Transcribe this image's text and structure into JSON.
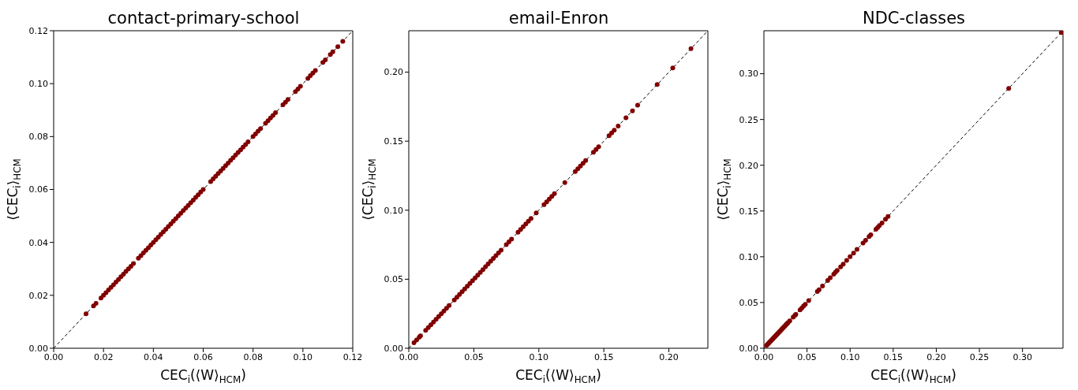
{
  "chart_data": [
    {
      "type": "scatter",
      "title": "contact-primary-school",
      "xlabel": "CEC$_{i}$(⟨W⟩$_{HCM}$)",
      "ylabel": "⟨CEC$_{i}$⟩$_{HCM}$",
      "marker": "circle",
      "xlim": [
        0,
        0.12
      ],
      "ylim": [
        0,
        0.12
      ],
      "xticks": [
        {
          "value": 0,
          "label": "0.00"
        },
        {
          "value": 0.02,
          "label": "0.02"
        },
        {
          "value": 0.04,
          "label": "0.04"
        },
        {
          "value": 0.06,
          "label": "0.06"
        },
        {
          "value": 0.08,
          "label": "0.08"
        },
        {
          "value": 0.1,
          "label": "0.10"
        },
        {
          "value": 0.12,
          "label": "0.12"
        }
      ],
      "yticks": [
        {
          "value": 0,
          "label": "0.00"
        },
        {
          "value": 0.02,
          "label": "0.02"
        },
        {
          "value": 0.04,
          "label": "0.04"
        },
        {
          "value": 0.06,
          "label": "0.06"
        },
        {
          "value": 0.08,
          "label": "0.08"
        },
        {
          "value": 0.1,
          "label": "0.10"
        },
        {
          "value": 0.12,
          "label": "0.12"
        }
      ],
      "series": [
        {
          "type": "line",
          "color": "#000000",
          "line_style": "dashed",
          "marker": "none",
          "x": [
            0,
            0.12
          ],
          "values": [
            0,
            0.12
          ]
        },
        {
          "color": "#800000",
          "x": [
            0.013,
            0.016,
            0.017,
            0.019,
            0.02,
            0.021,
            0.022,
            0.023,
            0.024,
            0.025,
            0.026,
            0.027,
            0.028,
            0.029,
            0.03,
            0.031,
            0.032,
            0.034,
            0.035,
            0.036,
            0.037,
            0.038,
            0.039,
            0.04,
            0.041,
            0.042,
            0.043,
            0.044,
            0.045,
            0.046,
            0.047,
            0.048,
            0.049,
            0.05,
            0.051,
            0.052,
            0.053,
            0.054,
            0.055,
            0.056,
            0.057,
            0.058,
            0.059,
            0.06,
            0.063,
            0.064,
            0.065,
            0.066,
            0.067,
            0.068,
            0.069,
            0.07,
            0.071,
            0.072,
            0.073,
            0.074,
            0.075,
            0.076,
            0.077,
            0.078,
            0.08,
            0.081,
            0.082,
            0.083,
            0.085,
            0.086,
            0.087,
            0.088,
            0.089,
            0.092,
            0.093,
            0.094,
            0.097,
            0.098,
            0.099,
            0.102,
            0.103,
            0.104,
            0.105,
            0.108,
            0.109,
            0.111,
            0.112,
            0.114,
            0.116
          ],
          "values": [
            0.013,
            0.016,
            0.017,
            0.019,
            0.02,
            0.021,
            0.022,
            0.023,
            0.024,
            0.025,
            0.026,
            0.027,
            0.028,
            0.029,
            0.03,
            0.031,
            0.032,
            0.034,
            0.035,
            0.036,
            0.037,
            0.038,
            0.039,
            0.04,
            0.041,
            0.042,
            0.043,
            0.044,
            0.045,
            0.046,
            0.047,
            0.048,
            0.049,
            0.05,
            0.051,
            0.052,
            0.053,
            0.054,
            0.055,
            0.056,
            0.057,
            0.058,
            0.059,
            0.06,
            0.063,
            0.064,
            0.065,
            0.066,
            0.067,
            0.068,
            0.069,
            0.07,
            0.071,
            0.072,
            0.073,
            0.074,
            0.075,
            0.076,
            0.077,
            0.078,
            0.08,
            0.081,
            0.082,
            0.083,
            0.085,
            0.086,
            0.087,
            0.088,
            0.089,
            0.092,
            0.093,
            0.094,
            0.097,
            0.098,
            0.099,
            0.102,
            0.103,
            0.104,
            0.105,
            0.108,
            0.109,
            0.111,
            0.112,
            0.114,
            0.116
          ]
        }
      ]
    },
    {
      "type": "scatter",
      "title": "email-Enron",
      "xlabel": "CEC$_{i}$(⟨W⟩$_{HCM}$)",
      "ylabel": "⟨CEC$_{i}$⟩$_{HCM}$",
      "marker": "circle",
      "xlim": [
        0,
        0.23
      ],
      "ylim": [
        0,
        0.23
      ],
      "xticks": [
        {
          "value": 0,
          "label": "0.00"
        },
        {
          "value": 0.05,
          "label": "0.05"
        },
        {
          "value": 0.1,
          "label": "0.10"
        },
        {
          "value": 0.15,
          "label": "0.15"
        },
        {
          "value": 0.2,
          "label": "0.20"
        }
      ],
      "yticks": [
        {
          "value": 0,
          "label": "0.00"
        },
        {
          "value": 0.05,
          "label": "0.05"
        },
        {
          "value": 0.1,
          "label": "0.10"
        },
        {
          "value": 0.15,
          "label": "0.15"
        },
        {
          "value": 0.2,
          "label": "0.20"
        }
      ],
      "series": [
        {
          "type": "line",
          "color": "#000000",
          "line_style": "dashed",
          "marker": "none",
          "x": [
            0,
            0.23
          ],
          "values": [
            0,
            0.23
          ]
        },
        {
          "color": "#800000",
          "x": [
            0.004,
            0.006,
            0.008,
            0.009,
            0.013,
            0.015,
            0.017,
            0.019,
            0.021,
            0.023,
            0.025,
            0.027,
            0.029,
            0.031,
            0.035,
            0.037,
            0.039,
            0.041,
            0.043,
            0.045,
            0.047,
            0.049,
            0.051,
            0.053,
            0.055,
            0.057,
            0.059,
            0.061,
            0.063,
            0.065,
            0.067,
            0.069,
            0.071,
            0.075,
            0.077,
            0.079,
            0.084,
            0.086,
            0.088,
            0.09,
            0.092,
            0.094,
            0.098,
            0.104,
            0.106,
            0.108,
            0.11,
            0.112,
            0.12,
            0.128,
            0.13,
            0.132,
            0.134,
            0.136,
            0.142,
            0.144,
            0.146,
            0.154,
            0.156,
            0.158,
            0.161,
            0.167,
            0.172,
            0.176,
            0.191,
            0.203,
            0.217
          ],
          "values": [
            0.004,
            0.006,
            0.008,
            0.009,
            0.013,
            0.015,
            0.017,
            0.019,
            0.021,
            0.023,
            0.025,
            0.027,
            0.029,
            0.031,
            0.035,
            0.037,
            0.039,
            0.041,
            0.043,
            0.045,
            0.047,
            0.049,
            0.051,
            0.053,
            0.055,
            0.057,
            0.059,
            0.061,
            0.063,
            0.065,
            0.067,
            0.069,
            0.071,
            0.075,
            0.077,
            0.079,
            0.084,
            0.086,
            0.088,
            0.09,
            0.092,
            0.094,
            0.098,
            0.104,
            0.106,
            0.108,
            0.11,
            0.112,
            0.12,
            0.128,
            0.13,
            0.132,
            0.134,
            0.136,
            0.142,
            0.144,
            0.146,
            0.154,
            0.156,
            0.158,
            0.161,
            0.167,
            0.172,
            0.176,
            0.191,
            0.203,
            0.217
          ]
        }
      ]
    },
    {
      "type": "scatter",
      "title": "NDC-classes",
      "xlabel": "CEC$_{i}$(⟨W⟩$_{HCM}$)",
      "ylabel": "⟨CEC$_{i}$⟩$_{HCM}$",
      "marker": "circle",
      "xlim": [
        0,
        0.347
      ],
      "ylim": [
        0,
        0.347
      ],
      "xticks": [
        {
          "value": 0,
          "label": "0.00"
        },
        {
          "value": 0.05,
          "label": "0.05"
        },
        {
          "value": 0.1,
          "label": "0.10"
        },
        {
          "value": 0.15,
          "label": "0.15"
        },
        {
          "value": 0.2,
          "label": "0.20"
        },
        {
          "value": 0.25,
          "label": "0.25"
        },
        {
          "value": 0.3,
          "label": "0.30"
        }
      ],
      "yticks": [
        {
          "value": 0,
          "label": "0.00"
        },
        {
          "value": 0.05,
          "label": "0.05"
        },
        {
          "value": 0.1,
          "label": "0.10"
        },
        {
          "value": 0.15,
          "label": "0.15"
        },
        {
          "value": 0.2,
          "label": "0.20"
        },
        {
          "value": 0.25,
          "label": "0.25"
        },
        {
          "value": 0.3,
          "label": "0.30"
        }
      ],
      "series": [
        {
          "type": "line",
          "color": "#000000",
          "line_style": "dashed",
          "marker": "none",
          "x": [
            0,
            0.347
          ],
          "values": [
            0,
            0.347
          ]
        },
        {
          "color": "#800000",
          "x": [
            0.003,
            0.004,
            0.005,
            0.006,
            0.007,
            0.008,
            0.009,
            0.01,
            0.011,
            0.012,
            0.013,
            0.014,
            0.015,
            0.016,
            0.017,
            0.018,
            0.019,
            0.02,
            0.021,
            0.022,
            0.023,
            0.024,
            0.025,
            0.026,
            0.027,
            0.028,
            0.03,
            0.034,
            0.036,
            0.037,
            0.042,
            0.044,
            0.046,
            0.048,
            0.052,
            0.062,
            0.064,
            0.068,
            0.074,
            0.077,
            0.081,
            0.083,
            0.085,
            0.089,
            0.092,
            0.096,
            0.1,
            0.104,
            0.108,
            0.115,
            0.118,
            0.122,
            0.124,
            0.13,
            0.132,
            0.134,
            0.137,
            0.141,
            0.144,
            0.284,
            0.345
          ],
          "values": [
            0.003,
            0.004,
            0.005,
            0.006,
            0.007,
            0.008,
            0.009,
            0.01,
            0.011,
            0.012,
            0.013,
            0.014,
            0.015,
            0.016,
            0.017,
            0.018,
            0.019,
            0.02,
            0.021,
            0.022,
            0.023,
            0.024,
            0.025,
            0.026,
            0.027,
            0.028,
            0.03,
            0.034,
            0.036,
            0.037,
            0.042,
            0.044,
            0.046,
            0.048,
            0.052,
            0.062,
            0.064,
            0.068,
            0.074,
            0.077,
            0.081,
            0.083,
            0.085,
            0.089,
            0.092,
            0.096,
            0.1,
            0.104,
            0.108,
            0.115,
            0.118,
            0.122,
            0.124,
            0.13,
            0.132,
            0.134,
            0.137,
            0.141,
            0.144,
            0.284,
            0.345
          ]
        }
      ]
    }
  ]
}
